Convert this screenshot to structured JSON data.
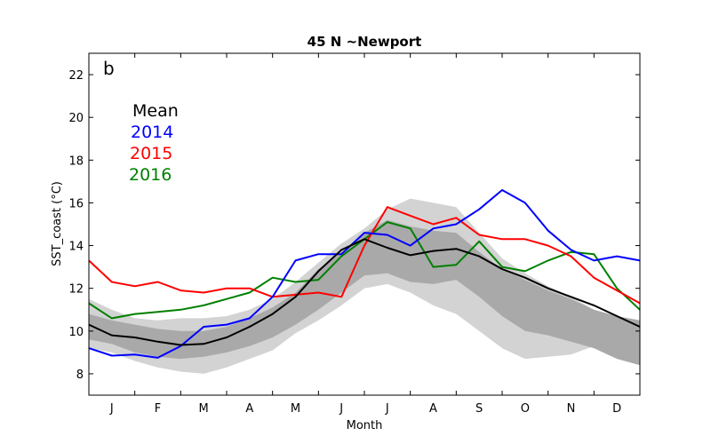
{
  "chart_data": {
    "type": "line",
    "title": "45 N ~Newport",
    "panel_label": "b",
    "xlabel": "Month",
    "ylabel": "SST_coast (°C)",
    "months": [
      "J",
      "F",
      "M",
      "A",
      "M",
      "J",
      "J",
      "A",
      "S",
      "O",
      "N",
      "D"
    ],
    "ylim": [
      7,
      23
    ],
    "yticks": [
      8,
      10,
      12,
      14,
      16,
      18,
      20,
      22
    ],
    "legend": [
      {
        "label": "Mean",
        "color": "#000000"
      },
      {
        "label": "2014",
        "color": "#0000ff"
      },
      {
        "label": "2015",
        "color": "#ff0000"
      },
      {
        "label": "2016",
        "color": "#008000"
      }
    ],
    "x": [
      0,
      0.5,
      1,
      1.5,
      2,
      2.5,
      3,
      3.5,
      4,
      4.5,
      5,
      5.5,
      6,
      6.5,
      7,
      7.5,
      8,
      8.5,
      9,
      9.5,
      10,
      10.5,
      11,
      11.5,
      12
    ],
    "outer_band": {
      "upper": [
        11.5,
        11.0,
        10.6,
        10.5,
        10.6,
        10.6,
        10.7,
        11.0,
        11.5,
        12.3,
        13.2,
        14.1,
        14.8,
        15.7,
        16.2,
        16.0,
        15.8,
        14.6,
        13.4,
        12.7,
        12.1,
        11.6,
        11.0,
        10.4,
        10.0
      ],
      "lower": [
        9.2,
        9.0,
        8.6,
        8.3,
        8.1,
        8.0,
        8.3,
        8.7,
        9.1,
        9.9,
        10.5,
        11.2,
        12.0,
        12.2,
        11.8,
        11.2,
        10.8,
        10.0,
        9.2,
        8.7,
        8.8,
        8.9,
        9.3,
        9.2,
        9.0
      ]
    },
    "inner_band": {
      "upper": [
        10.8,
        10.5,
        10.3,
        10.1,
        10.0,
        10.0,
        10.2,
        10.6,
        11.1,
        11.8,
        12.9,
        13.7,
        14.6,
        15.2,
        14.9,
        14.7,
        14.6,
        13.7,
        12.9,
        12.4,
        11.9,
        11.5,
        11.0,
        10.7,
        10.5
      ],
      "lower": [
        9.6,
        9.4,
        9.0,
        8.8,
        8.7,
        8.8,
        9.0,
        9.3,
        9.7,
        10.3,
        11.0,
        11.8,
        12.6,
        12.7,
        12.3,
        12.2,
        12.4,
        11.6,
        10.7,
        10.0,
        9.8,
        9.5,
        9.2,
        8.7,
        8.4
      ]
    },
    "series": [
      {
        "name": "Mean",
        "color": "#000000",
        "values": [
          10.3,
          9.8,
          9.7,
          9.5,
          9.35,
          9.4,
          9.7,
          10.2,
          10.8,
          11.6,
          12.8,
          13.8,
          14.3,
          13.9,
          13.55,
          13.75,
          13.85,
          13.5,
          12.9,
          12.5,
          12.0,
          11.6,
          11.2,
          10.7,
          10.2
        ]
      },
      {
        "name": "2014",
        "color": "#0000ff",
        "values": [
          9.2,
          8.85,
          8.9,
          8.75,
          9.3,
          10.2,
          10.3,
          10.6,
          11.6,
          13.3,
          13.6,
          13.6,
          14.6,
          14.5,
          14.0,
          14.8,
          15.0,
          15.7,
          16.6,
          16.0,
          14.7,
          13.8,
          13.3,
          13.5,
          13.3
        ]
      },
      {
        "name": "2015",
        "color": "#ff0000",
        "values": [
          13.3,
          12.3,
          12.1,
          12.3,
          11.9,
          11.8,
          12.0,
          12.0,
          11.6,
          11.7,
          11.8,
          11.6,
          14.0,
          15.8,
          15.4,
          15.0,
          15.3,
          14.5,
          14.3,
          14.3,
          14.0,
          13.5,
          12.5,
          11.9,
          11.3
        ]
      },
      {
        "name": "2016",
        "color": "#008000",
        "values": [
          11.3,
          10.6,
          10.8,
          10.9,
          11.0,
          11.2,
          11.5,
          11.8,
          12.5,
          12.3,
          12.4,
          13.5,
          14.3,
          15.1,
          14.8,
          13.0,
          13.1,
          14.2,
          13.0,
          12.8,
          13.3,
          13.7,
          13.6,
          12.0,
          11.0
        ]
      }
    ]
  }
}
